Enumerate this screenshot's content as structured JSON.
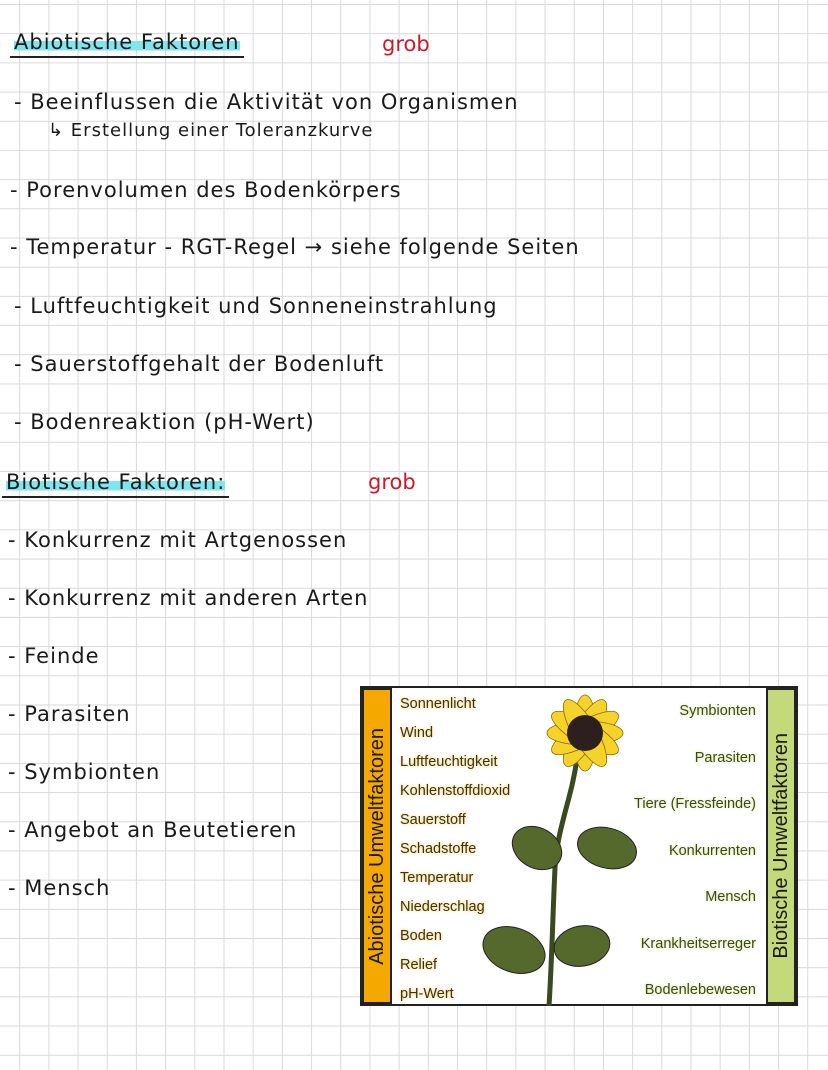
{
  "abiotic": {
    "heading": "Abiotische Faktoren",
    "note": "grob",
    "lines": [
      "- Beeinflussen die Aktivität von Organismen",
      "↳ Erstellung einer Toleranzkurve",
      "- Porenvolumen des Bodenkörpers",
      "- Temperatur - RGT-Regel → siehe folgende Seiten",
      "- Luftfeuchtigkeit und Sonneneinstrahlung",
      "- Sauerstoffgehalt der Bodenluft",
      "- Bodenreaktion (pH-Wert)"
    ]
  },
  "biotic": {
    "heading": "Biotische Faktoren:",
    "note": "grob",
    "lines": [
      "- Konkurrenz mit Artgenossen",
      "- Konkurrenz mit anderen Arten",
      "- Feinde",
      "- Parasiten",
      "- Symbionten",
      "- Angebot an Beutetieren",
      "- Mensch"
    ]
  },
  "figure": {
    "left_title": "Abiotische Umweltfaktoren",
    "right_title": "Biotische Umweltfaktoren",
    "left_items": [
      "Sonnenlicht",
      "Wind",
      "Luftfeuchtigkeit",
      "Kohlenstoffdioxid",
      "Sauerstoff",
      "Schadstoffe",
      "Temperatur",
      "Niederschlag",
      "Boden",
      "Relief",
      "pH-Wert"
    ],
    "right_items": [
      "Symbionten",
      "Parasiten",
      "Tiere (Fressfeinde)",
      "Konkurrenten",
      "Mensch",
      "Krankheitserreger",
      "Bodenlebewesen"
    ],
    "colors": {
      "abiotic": "#f5a800",
      "biotic": "#c3d97a",
      "highlight": "#7fe6ee",
      "note": "#d0182a"
    }
  }
}
